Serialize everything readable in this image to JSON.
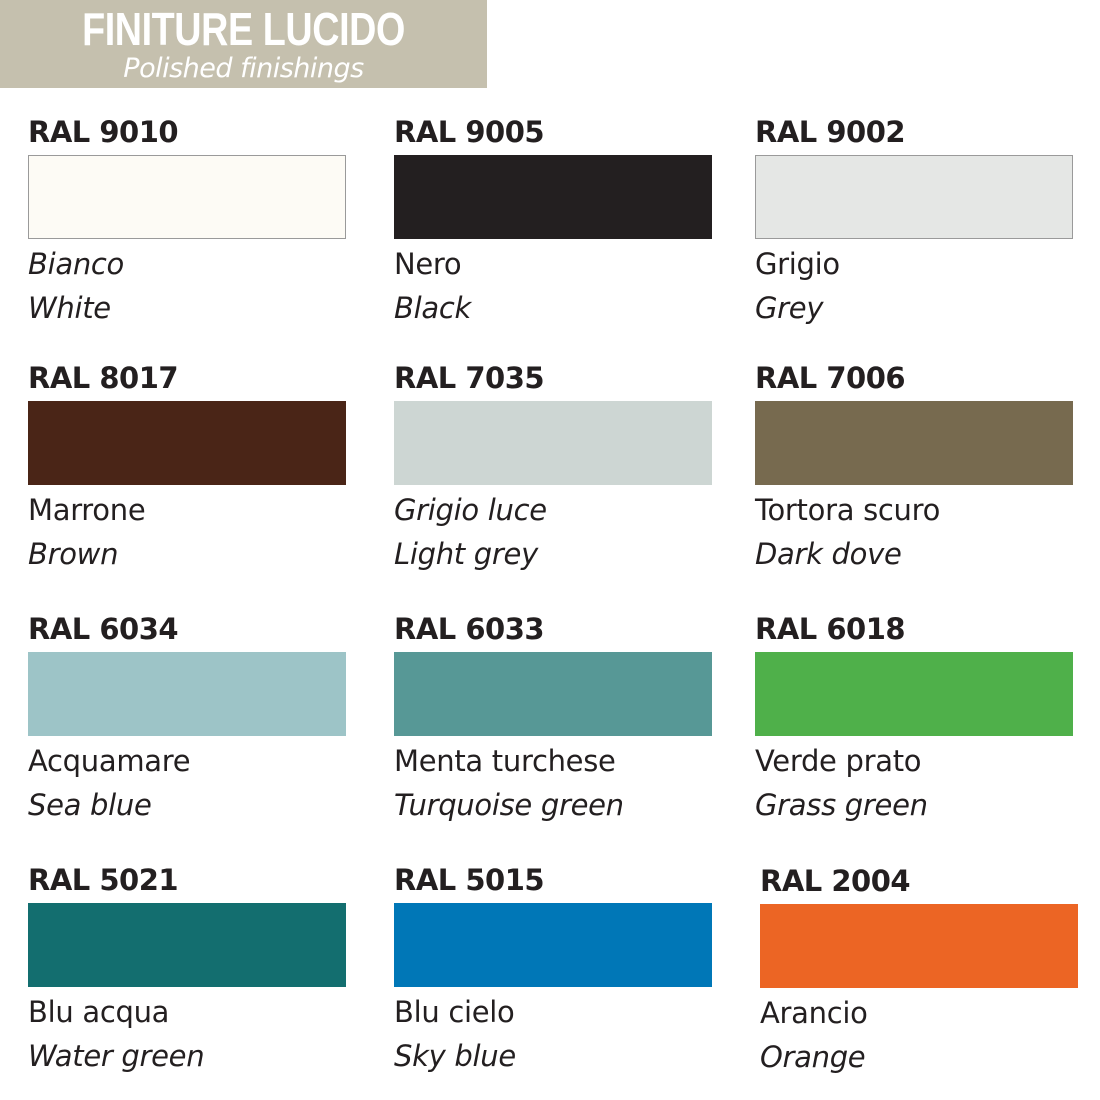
{
  "header": {
    "title": "FINITURE LUCIDO",
    "subtitle": "Polished finishings",
    "background": "#c5c0ae"
  },
  "swatches": [
    {
      "code": "RAL 9010",
      "it": "Bianco",
      "en": "White",
      "color": "#fdfbf5",
      "it_italic": true,
      "bordered": true
    },
    {
      "code": "RAL 9005",
      "it": "Nero",
      "en": "Black",
      "color": "#231f20",
      "it_italic": false,
      "bordered": false
    },
    {
      "code": "RAL 9002",
      "it": "Grigio",
      "en": "Grey",
      "color": "#e5e7e5",
      "it_italic": false,
      "bordered": true
    },
    {
      "code": "RAL 8017",
      "it": "Marrone",
      "en": "Brown",
      "color": "#4a2517",
      "it_italic": false,
      "bordered": false
    },
    {
      "code": "RAL 7035",
      "it": "Grigio luce",
      "en": "Light grey",
      "color": "#cdd6d3",
      "it_italic": true,
      "bordered": false
    },
    {
      "code": "RAL 7006",
      "it": "Tortora scuro",
      "en": "Dark dove",
      "color": "#776a4f",
      "it_italic": false,
      "bordered": false
    },
    {
      "code": "RAL 6034",
      "it": "Acquamare",
      "en": "Sea blue",
      "color": "#9dc4c7",
      "it_italic": false,
      "bordered": false
    },
    {
      "code": "RAL 6033",
      "it": "Menta turchese",
      "en": "Turquoise green",
      "color": "#579896",
      "it_italic": false,
      "bordered": false
    },
    {
      "code": "RAL 6018",
      "it": "Verde prato",
      "en": "Grass green",
      "color": "#4fb04a",
      "it_italic": false,
      "bordered": false
    },
    {
      "code": "RAL 5021",
      "it": "Blu acqua",
      "en": "Water green",
      "color": "#136e6f",
      "it_italic": false,
      "bordered": false
    },
    {
      "code": "RAL 5015",
      "it": "Blu cielo",
      "en": "Sky blue",
      "color": "#0077b7",
      "it_italic": false,
      "bordered": false
    },
    {
      "code": "RAL 2004",
      "it": "Arancio",
      "en": "Orange",
      "color": "#ec6524",
      "it_italic": false,
      "bordered": false
    }
  ]
}
